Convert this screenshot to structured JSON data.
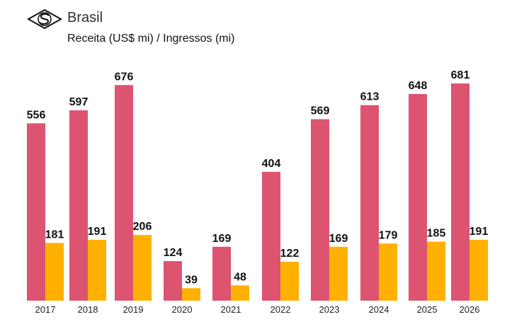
{
  "header": {
    "title": "Brasil",
    "subtitle": "Receita (US$ mi) / Ingressos (mi)",
    "logo_icon": "stylized-s-diamond-logo"
  },
  "chart_data": {
    "type": "bar",
    "title": "Brasil",
    "subtitle": "Receita (US$ mi) / Ingressos (mi)",
    "xlabel": "",
    "ylabel": "",
    "categories": [
      "2017",
      "2018",
      "2019",
      "2020",
      "2021",
      "2022",
      "2023",
      "2024",
      "2025",
      "2026"
    ],
    "series": [
      {
        "name": "Receita (US$ mi)",
        "color": "#DC5470",
        "values": [
          556,
          597,
          676,
          124,
          169,
          404,
          569,
          613,
          648,
          681
        ]
      },
      {
        "name": "Ingressos (mi)",
        "color": "#FFB000",
        "values": [
          181,
          191,
          206,
          39,
          48,
          122,
          169,
          179,
          185,
          191
        ]
      }
    ],
    "ylim": [
      0,
      681
    ],
    "grid": false,
    "data_labels": true
  }
}
